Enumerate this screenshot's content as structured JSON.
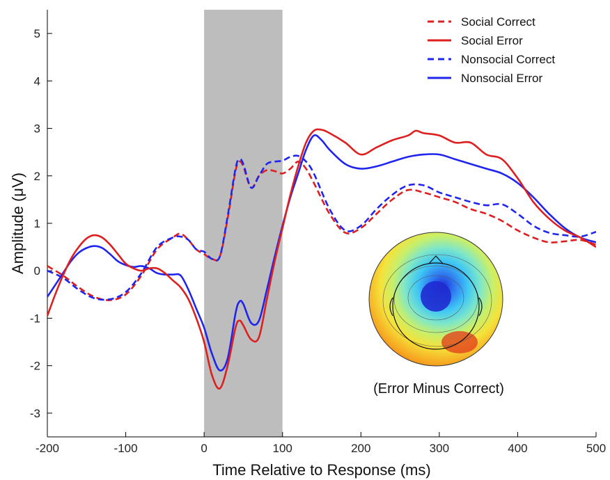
{
  "chart_data": {
    "type": "line",
    "xlabel": "Time Relative to Response (ms)",
    "ylabel": "Amplitude (μV)",
    "xlim": [
      -200,
      500
    ],
    "ylim": [
      -3.5,
      5.5
    ],
    "xticks": [
      -200,
      -100,
      0,
      100,
      200,
      300,
      400,
      500
    ],
    "yticks": [
      -3,
      -2,
      -1,
      0,
      1,
      2,
      3,
      4,
      5
    ],
    "grid": false,
    "legend_position": "top-right",
    "shaded_region": {
      "x_start": 0,
      "x_end": 100,
      "color": "#bdbdbd"
    },
    "colors": {
      "social": "#dd1f1f",
      "nonsocial": "#1f24ee"
    },
    "series": [
      {
        "name": "Social Correct",
        "color": "#dd1f1f",
        "dash": true,
        "x": [
          -200,
          -180,
          -160,
          -140,
          -120,
          -100,
          -80,
          -60,
          -40,
          -30,
          -20,
          -10,
          0,
          10,
          20,
          30,
          40,
          45,
          50,
          60,
          70,
          80,
          90,
          100,
          110,
          120,
          130,
          140,
          160,
          180,
          200,
          220,
          240,
          260,
          280,
          300,
          320,
          340,
          360,
          380,
          400,
          420,
          440,
          460,
          480,
          500
        ],
        "y": [
          0.1,
          -0.1,
          -0.35,
          -0.55,
          -0.62,
          -0.5,
          -0.1,
          0.45,
          0.7,
          0.78,
          0.65,
          0.45,
          0.35,
          0.25,
          0.3,
          1.1,
          2.1,
          2.3,
          2.2,
          1.75,
          2.0,
          2.12,
          2.1,
          2.05,
          2.15,
          2.3,
          2.15,
          1.85,
          1.2,
          0.8,
          0.9,
          1.2,
          1.5,
          1.7,
          1.65,
          1.55,
          1.45,
          1.3,
          1.2,
          1.05,
          0.85,
          0.7,
          0.6,
          0.62,
          0.65,
          0.55
        ]
      },
      {
        "name": "Social Error",
        "color": "#dd1f1f",
        "dash": false,
        "x": [
          -200,
          -190,
          -180,
          -170,
          -160,
          -150,
          -140,
          -130,
          -120,
          -110,
          -100,
          -90,
          -80,
          -70,
          -60,
          -50,
          -40,
          -30,
          -20,
          -10,
          0,
          10,
          20,
          30,
          40,
          45,
          50,
          60,
          70,
          80,
          90,
          100,
          110,
          120,
          130,
          140,
          150,
          160,
          180,
          200,
          220,
          240,
          260,
          270,
          280,
          300,
          320,
          340,
          360,
          380,
          400,
          420,
          440,
          460,
          480,
          500
        ],
        "y": [
          -0.95,
          -0.5,
          -0.1,
          0.25,
          0.5,
          0.68,
          0.75,
          0.7,
          0.55,
          0.35,
          0.15,
          0.05,
          0.0,
          0.05,
          0.05,
          -0.05,
          -0.2,
          -0.35,
          -0.6,
          -1.0,
          -1.5,
          -2.2,
          -2.48,
          -2.0,
          -1.2,
          -1.05,
          -1.15,
          -1.45,
          -1.4,
          -0.6,
          0.2,
          0.9,
          1.6,
          2.2,
          2.7,
          2.95,
          2.97,
          2.9,
          2.7,
          2.45,
          2.6,
          2.75,
          2.85,
          2.95,
          2.9,
          2.85,
          2.7,
          2.7,
          2.45,
          2.35,
          1.95,
          1.45,
          1.1,
          0.85,
          0.7,
          0.5
        ]
      },
      {
        "name": "Nonsocial Correct",
        "color": "#1f24ee",
        "dash": true,
        "x": [
          -200,
          -180,
          -160,
          -140,
          -120,
          -100,
          -80,
          -60,
          -40,
          -30,
          -20,
          -10,
          0,
          10,
          20,
          30,
          40,
          45,
          50,
          60,
          70,
          80,
          90,
          100,
          110,
          120,
          130,
          140,
          160,
          180,
          200,
          220,
          240,
          260,
          280,
          300,
          320,
          340,
          360,
          380,
          400,
          420,
          440,
          460,
          480,
          500
        ],
        "y": [
          0.0,
          -0.15,
          -0.4,
          -0.58,
          -0.6,
          -0.45,
          -0.05,
          0.5,
          0.7,
          0.72,
          0.65,
          0.45,
          0.4,
          0.25,
          0.3,
          1.15,
          2.15,
          2.35,
          2.25,
          1.75,
          2.0,
          2.25,
          2.3,
          2.32,
          2.4,
          2.42,
          2.3,
          2.05,
          1.3,
          0.85,
          0.95,
          1.3,
          1.6,
          1.8,
          1.8,
          1.65,
          1.55,
          1.45,
          1.38,
          1.4,
          1.2,
          0.95,
          0.8,
          0.75,
          0.72,
          0.82
        ]
      },
      {
        "name": "Nonsocial Error",
        "color": "#1f24ee",
        "dash": false,
        "x": [
          -200,
          -190,
          -180,
          -170,
          -160,
          -150,
          -140,
          -130,
          -120,
          -110,
          -100,
          -90,
          -80,
          -70,
          -60,
          -50,
          -40,
          -30,
          -20,
          -10,
          0,
          10,
          20,
          30,
          40,
          45,
          50,
          60,
          70,
          80,
          90,
          100,
          110,
          120,
          130,
          140,
          150,
          160,
          180,
          200,
          220,
          240,
          260,
          280,
          300,
          320,
          340,
          360,
          380,
          400,
          420,
          440,
          460,
          480,
          500
        ],
        "y": [
          -0.55,
          -0.3,
          -0.05,
          0.2,
          0.38,
          0.48,
          0.52,
          0.48,
          0.35,
          0.2,
          0.12,
          0.08,
          0.1,
          0.05,
          -0.05,
          -0.08,
          -0.08,
          -0.1,
          -0.4,
          -0.8,
          -1.2,
          -1.75,
          -2.1,
          -1.85,
          -0.9,
          -0.65,
          -0.7,
          -1.1,
          -1.05,
          -0.4,
          0.3,
          0.95,
          1.55,
          2.05,
          2.55,
          2.85,
          2.75,
          2.55,
          2.25,
          2.15,
          2.2,
          2.3,
          2.4,
          2.45,
          2.45,
          2.35,
          2.25,
          2.15,
          2.05,
          1.85,
          1.55,
          1.2,
          0.9,
          0.7,
          0.6
        ]
      }
    ],
    "inset_caption": "(Error Minus Correct)"
  }
}
